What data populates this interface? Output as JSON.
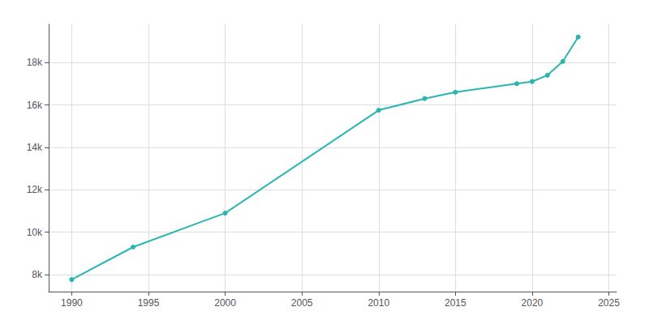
{
  "chart_data": {
    "type": "line",
    "x": [
      1990,
      1994,
      2000,
      2010,
      2013,
      2015,
      2019,
      2020,
      2021,
      2022,
      2023
    ],
    "values": [
      7767,
      9300,
      10900,
      15750,
      16300,
      16600,
      17000,
      17100,
      17400,
      18050,
      19200
    ],
    "color": "#2ab5b0",
    "marker": "circle",
    "xlim": [
      1988.5,
      2025.5
    ],
    "xticks": [
      1990,
      1995,
      2000,
      2005,
      2010,
      2015,
      2020,
      2025
    ],
    "ylim": [
      7200,
      19800
    ],
    "yticks": [
      {
        "value": 8000,
        "label": "8k"
      },
      {
        "value": 10000,
        "label": "10k"
      },
      {
        "value": 12000,
        "label": "12k"
      },
      {
        "value": 14000,
        "label": "14k"
      },
      {
        "value": 16000,
        "label": "16k"
      },
      {
        "value": 18000,
        "label": "18k"
      }
    ],
    "grid": true
  }
}
